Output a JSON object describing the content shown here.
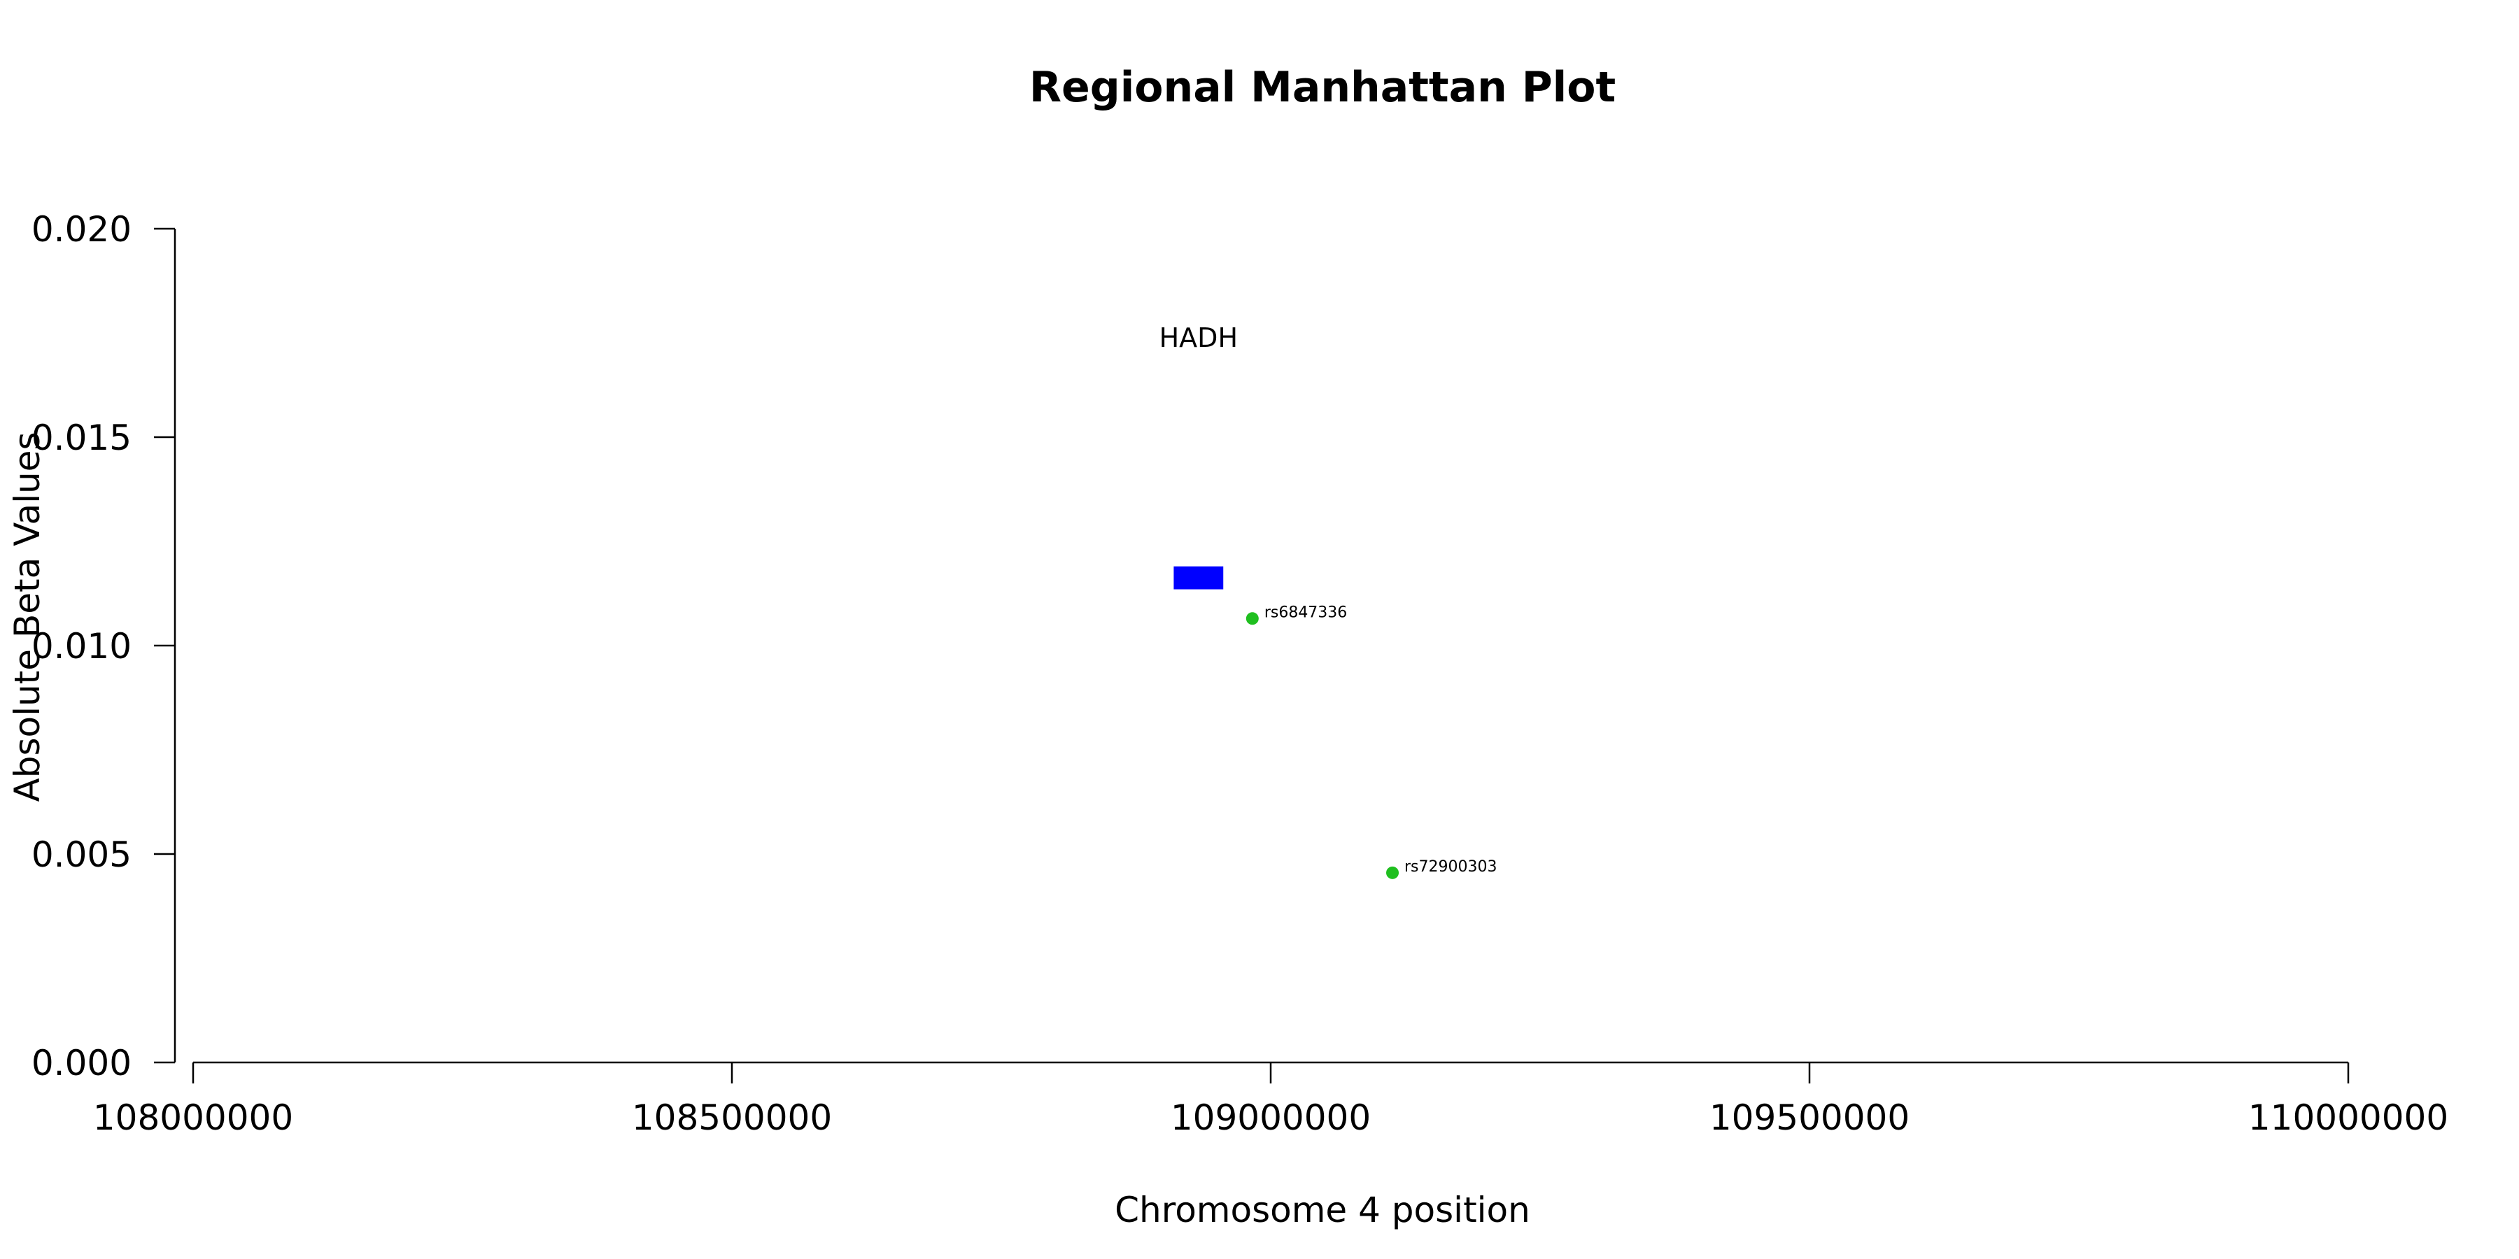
{
  "chart_data": {
    "type": "scatter",
    "title": "Regional Manhattan Plot",
    "xlabel": "Chromosome 4 position",
    "ylabel": "Absolute Beta Values",
    "xlim": [
      108000000,
      110000000
    ],
    "ylim": [
      0,
      0.02
    ],
    "x_ticks": [
      108000000,
      108500000,
      109000000,
      109500000,
      110000000
    ],
    "x_tick_labels": [
      "108000000",
      "108500000",
      "109000000",
      "109500000",
      "110000000"
    ],
    "y_ticks": [
      0,
      0.005,
      0.01,
      0.015,
      0.02
    ],
    "y_tick_labels": [
      "0.000",
      "0.005",
      "0.010",
      "0.015",
      "0.020"
    ],
    "grid": false,
    "points": [
      {
        "label": "rs6847336",
        "x": 108983000,
        "y": 0.01065,
        "color": "#1fbf1f"
      },
      {
        "label": "rs72900303",
        "x": 109113000,
        "y": 0.00455,
        "color": "#1fbf1f"
      }
    ],
    "genes": [
      {
        "label": "HADH",
        "start": 108910000,
        "end": 108956000,
        "y_low": 0.01135,
        "y_high": 0.0119,
        "label_y": 0.0174,
        "color": "#0000ff"
      }
    ]
  }
}
